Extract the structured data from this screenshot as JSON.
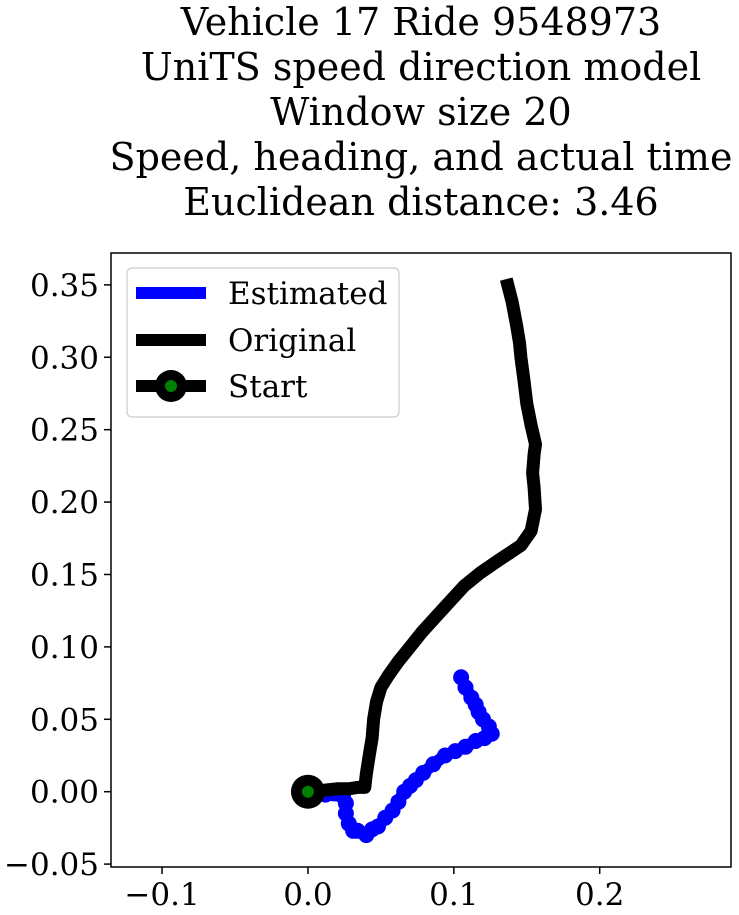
{
  "chart_data": {
    "type": "line",
    "title_lines": [
      "Vehicle 17 Ride 9548973",
      "UniTS speed direction model",
      "Window size 20",
      "Speed, heading, and actual time",
      "Euclidean distance: 3.46"
    ],
    "xlabel": "",
    "ylabel": "",
    "xlim": [
      -0.135,
      0.29
    ],
    "ylim": [
      -0.052,
      0.372
    ],
    "x_ticks": [
      {
        "value": -0.1,
        "label": "−0.1"
      },
      {
        "value": 0.0,
        "label": "0.0"
      },
      {
        "value": 0.1,
        "label": "0.1"
      },
      {
        "value": 0.2,
        "label": "0.2"
      }
    ],
    "y_ticks": [
      {
        "value": -0.05,
        "label": "−0.05"
      },
      {
        "value": 0.0,
        "label": "0.00"
      },
      {
        "value": 0.05,
        "label": "0.05"
      },
      {
        "value": 0.1,
        "label": "0.10"
      },
      {
        "value": 0.15,
        "label": "0.15"
      },
      {
        "value": 0.2,
        "label": "0.20"
      },
      {
        "value": 0.25,
        "label": "0.25"
      },
      {
        "value": 0.3,
        "label": "0.30"
      },
      {
        "value": 0.35,
        "label": "0.35"
      }
    ],
    "legend_position": "top-left",
    "series": [
      {
        "name": "Estimated",
        "color": "#0000ff",
        "x": [
          0.0,
          0.012,
          0.024,
          0.026,
          0.026,
          0.028,
          0.031,
          0.034,
          0.04,
          0.044,
          0.048,
          0.053,
          0.058,
          0.062,
          0.066,
          0.07,
          0.074,
          0.079,
          0.086,
          0.094,
          0.101,
          0.108,
          0.115,
          0.121,
          0.126,
          0.124,
          0.12,
          0.117,
          0.115,
          0.112,
          0.108,
          0.105
        ],
        "y": [
          0.0,
          -0.002,
          -0.003,
          -0.008,
          -0.015,
          -0.022,
          -0.027,
          -0.027,
          -0.03,
          -0.026,
          -0.024,
          -0.018,
          -0.013,
          -0.007,
          0.0,
          0.004,
          0.008,
          0.013,
          0.019,
          0.025,
          0.028,
          0.031,
          0.035,
          0.037,
          0.04,
          0.045,
          0.05,
          0.055,
          0.06,
          0.065,
          0.072,
          0.079
        ]
      },
      {
        "name": "Original",
        "color": "#000000",
        "x": [
          0.0,
          0.01,
          0.02,
          0.028,
          0.034,
          0.039,
          0.04,
          0.042,
          0.044,
          0.045,
          0.047,
          0.05,
          0.055,
          0.062,
          0.07,
          0.078,
          0.087,
          0.097,
          0.107,
          0.118,
          0.131,
          0.146,
          0.153,
          0.156,
          0.155,
          0.154,
          0.155,
          0.156,
          0.153,
          0.15,
          0.148,
          0.146,
          0.145,
          0.143,
          0.14,
          0.136
        ],
        "y": [
          0.0,
          0.001,
          0.002,
          0.002,
          0.003,
          0.003,
          0.012,
          0.025,
          0.037,
          0.05,
          0.062,
          0.072,
          0.08,
          0.09,
          0.1,
          0.11,
          0.12,
          0.131,
          0.142,
          0.151,
          0.16,
          0.17,
          0.18,
          0.195,
          0.21,
          0.22,
          0.233,
          0.24,
          0.253,
          0.268,
          0.285,
          0.3,
          0.31,
          0.322,
          0.338,
          0.354
        ]
      }
    ],
    "start_marker": {
      "name": "Start",
      "x": 0.0,
      "y": 0.0,
      "fill_color": "#008000",
      "edge_color": "#000000"
    }
  }
}
